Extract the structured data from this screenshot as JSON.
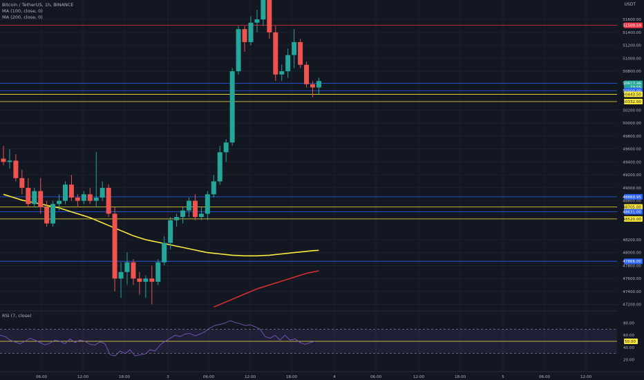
{
  "legend": {
    "symbol": "Bitcoin / TetherUS, 1h, BINANCE",
    "ma100": "MA (100, close, 0)",
    "ma200": "MA (200, close, 0)"
  },
  "currency": "USDT",
  "price_axis": {
    "ticks": [
      "51600.00",
      "51400.00",
      "51200.00",
      "51000.00",
      "50800.00",
      "50200.00",
      "50000.00",
      "49800.00",
      "49600.00",
      "49400.00",
      "49200.00",
      "49000.00",
      "48800.00",
      "48200.00",
      "48000.00",
      "47800.00",
      "47600.00",
      "47400.00",
      "47200.00"
    ],
    "tick_values": [
      51600,
      51400,
      51200,
      51000,
      50800,
      50200,
      50000,
      49800,
      49600,
      49400,
      49200,
      49000,
      48800,
      48200,
      48000,
      47800,
      47600,
      47400,
      47200
    ],
    "price_tags": [
      {
        "label": "51509.59",
        "value": 51509.59,
        "bg": "#f23645",
        "fg": "#ffffff"
      },
      {
        "label": "50613.46",
        "value": 50613.46,
        "bg": "#26a69a",
        "fg": "#ffffff"
      },
      {
        "label": "23:55",
        "value": 50555,
        "bg": "#26a69a",
        "fg": "#ffffff"
      },
      {
        "label": "50500.00",
        "value": 50500,
        "bg": "#2962ff",
        "fg": "#ffffff"
      },
      {
        "label": "50443.50",
        "value": 50443.5,
        "bg": "#ffeb3b",
        "fg": "#131722"
      },
      {
        "label": "50332.00",
        "value": 50332,
        "bg": "#ffeb3b",
        "fg": "#131722"
      },
      {
        "label": "48860.95",
        "value": 48860.95,
        "bg": "#2962ff",
        "fg": "#ffffff"
      },
      {
        "label": "48705.00",
        "value": 48705,
        "bg": "#ffeb3b",
        "fg": "#131722"
      },
      {
        "label": "48631.00",
        "value": 48631,
        "bg": "#2962ff",
        "fg": "#ffffff"
      },
      {
        "label": "48520.00",
        "value": 48520,
        "bg": "#ffeb3b",
        "fg": "#131722"
      },
      {
        "label": "47866.00",
        "value": 47866,
        "bg": "#2962ff",
        "fg": "#ffffff"
      }
    ]
  },
  "hlines": [
    {
      "value": 51509.59,
      "color": "#f23645"
    },
    {
      "value": 50613.46,
      "color": "#2962ff"
    },
    {
      "value": 50500,
      "color": "#2962ff"
    },
    {
      "value": 50443.5,
      "color": "#ffeb3b"
    },
    {
      "value": 50332,
      "color": "#ffeb3b"
    },
    {
      "value": 48860.95,
      "color": "#2962ff"
    },
    {
      "value": 48705,
      "color": "#ffeb3b"
    },
    {
      "value": 48631,
      "color": "#2962ff"
    },
    {
      "value": 48520,
      "color": "#ffeb3b"
    },
    {
      "value": 47866,
      "color": "#2962ff"
    }
  ],
  "time_axis": [
    "06:00",
    "12:00",
    "18:00",
    "3",
    "06:00",
    "12:00",
    "18:00",
    "4",
    "06:00",
    "12:00",
    "18:00",
    "5",
    "06:00",
    "12:00"
  ],
  "rsi": {
    "label": "RSI (7, close)",
    "ticks": [
      "80.00",
      "60.00",
      "40.00",
      "20.00"
    ],
    "tick_values": [
      80,
      60,
      40,
      20
    ],
    "tag": {
      "label": "50.00",
      "value": 50
    },
    "upper": 70,
    "lower": 30,
    "values": [
      60,
      58,
      52,
      49,
      46,
      50,
      55,
      52,
      48,
      44,
      47,
      52,
      50,
      46,
      54,
      48,
      52,
      50,
      45,
      44,
      49,
      46,
      28,
      26,
      34,
      30,
      36,
      26,
      28,
      29,
      36,
      34,
      44,
      50,
      55,
      60,
      58,
      62,
      63,
      59,
      62,
      66,
      72,
      76,
      78,
      80,
      84,
      81,
      79,
      76,
      77,
      74,
      70,
      58,
      55,
      60,
      52,
      60,
      52,
      54,
      48,
      45,
      48,
      50
    ]
  },
  "chart_data": {
    "type": "candlestick",
    "title": "Bitcoin / TetherUS, 1h, BINANCE",
    "interval": "1h",
    "ylim": [
      47100,
      51900
    ],
    "colors": {
      "up": "#26a69a",
      "down": "#ef5350",
      "ma100": "#ffeb3b",
      "ma200": "#d32f2f"
    },
    "ohlc": [
      [
        49450,
        49650,
        49350,
        49400
      ],
      [
        49400,
        49600,
        49300,
        49420
      ],
      [
        49420,
        49520,
        49100,
        49150
      ],
      [
        49150,
        49280,
        48900,
        49000
      ],
      [
        49000,
        49150,
        48700,
        48750
      ],
      [
        48750,
        49000,
        48700,
        48950
      ],
      [
        48950,
        49150,
        48600,
        48700
      ],
      [
        48700,
        48800,
        48400,
        48450
      ],
      [
        48450,
        48800,
        48400,
        48750
      ],
      [
        48750,
        48900,
        48650,
        48800
      ],
      [
        48800,
        49100,
        48750,
        49050
      ],
      [
        49050,
        49200,
        48800,
        48850
      ],
      [
        48850,
        48900,
        48700,
        48800
      ],
      [
        48800,
        48950,
        48750,
        48900
      ],
      [
        48900,
        49000,
        48750,
        48800
      ],
      [
        48800,
        49550,
        48700,
        48850
      ],
      [
        48850,
        49100,
        48800,
        49000
      ],
      [
        49000,
        49050,
        48550,
        48600
      ],
      [
        48600,
        48700,
        47400,
        47600
      ],
      [
        47600,
        47850,
        47300,
        47700
      ],
      [
        47700,
        48000,
        47500,
        47850
      ],
      [
        47850,
        47900,
        47500,
        47600
      ],
      [
        47600,
        47700,
        47350,
        47550
      ],
      [
        47550,
        47650,
        47300,
        47600
      ],
      [
        47600,
        47800,
        47200,
        47550
      ],
      [
        47550,
        47900,
        47500,
        47850
      ],
      [
        47850,
        48250,
        47800,
        48150
      ],
      [
        48150,
        48550,
        48050,
        48500
      ],
      [
        48500,
        48600,
        48400,
        48550
      ],
      [
        48550,
        48700,
        48450,
        48650
      ],
      [
        48650,
        48850,
        48550,
        48800
      ],
      [
        48800,
        48900,
        48500,
        48550
      ],
      [
        48550,
        48700,
        48500,
        48600
      ],
      [
        48600,
        48950,
        48500,
        48900
      ],
      [
        48900,
        49200,
        48850,
        49100
      ],
      [
        49100,
        49650,
        49050,
        49550
      ],
      [
        49550,
        49750,
        49400,
        49700
      ],
      [
        49700,
        50850,
        49650,
        50800
      ],
      [
        50800,
        51500,
        50750,
        51450
      ],
      [
        51450,
        51500,
        51100,
        51250
      ],
      [
        51250,
        51650,
        51200,
        51550
      ],
      [
        51550,
        51750,
        51400,
        51600
      ],
      [
        51600,
        52000,
        51500,
        51900
      ],
      [
        51900,
        51950,
        51300,
        51400
      ],
      [
        51400,
        51500,
        50650,
        50750
      ],
      [
        50750,
        50900,
        50650,
        50800
      ],
      [
        50800,
        51150,
        50700,
        51050
      ],
      [
        51050,
        51450,
        50850,
        51250
      ],
      [
        51250,
        51300,
        50850,
        50900
      ],
      [
        50900,
        50950,
        50550,
        50600
      ],
      [
        50600,
        50650,
        50400,
        50550
      ],
      [
        50550,
        50700,
        50450,
        50650
      ]
    ],
    "ma100": [
      48900,
      48870,
      48840,
      48810,
      48790,
      48770,
      48750,
      48730,
      48710,
      48690,
      48660,
      48630,
      48600,
      48570,
      48540,
      48500,
      48460,
      48420,
      48380,
      48340,
      48300,
      48260,
      48230,
      48200,
      48180,
      48160,
      48140,
      48120,
      48100,
      48080,
      48060,
      48040,
      48020,
      48000,
      47990,
      47980,
      47970,
      47960,
      47955,
      47950,
      47950,
      47950,
      47955,
      47960,
      47970,
      47980,
      47990,
      48000,
      48010,
      48020,
      48030,
      48035
    ],
    "ma200": [
      null,
      null,
      null,
      null,
      null,
      null,
      null,
      null,
      null,
      null,
      null,
      null,
      null,
      null,
      null,
      null,
      null,
      null,
      null,
      null,
      null,
      null,
      null,
      null,
      null,
      null,
      null,
      null,
      null,
      null,
      null,
      null,
      null,
      null,
      47160,
      47200,
      47240,
      47280,
      47320,
      47360,
      47400,
      47440,
      47470,
      47500,
      47530,
      47560,
      47590,
      47620,
      47650,
      47680,
      47700,
      47720
    ]
  }
}
